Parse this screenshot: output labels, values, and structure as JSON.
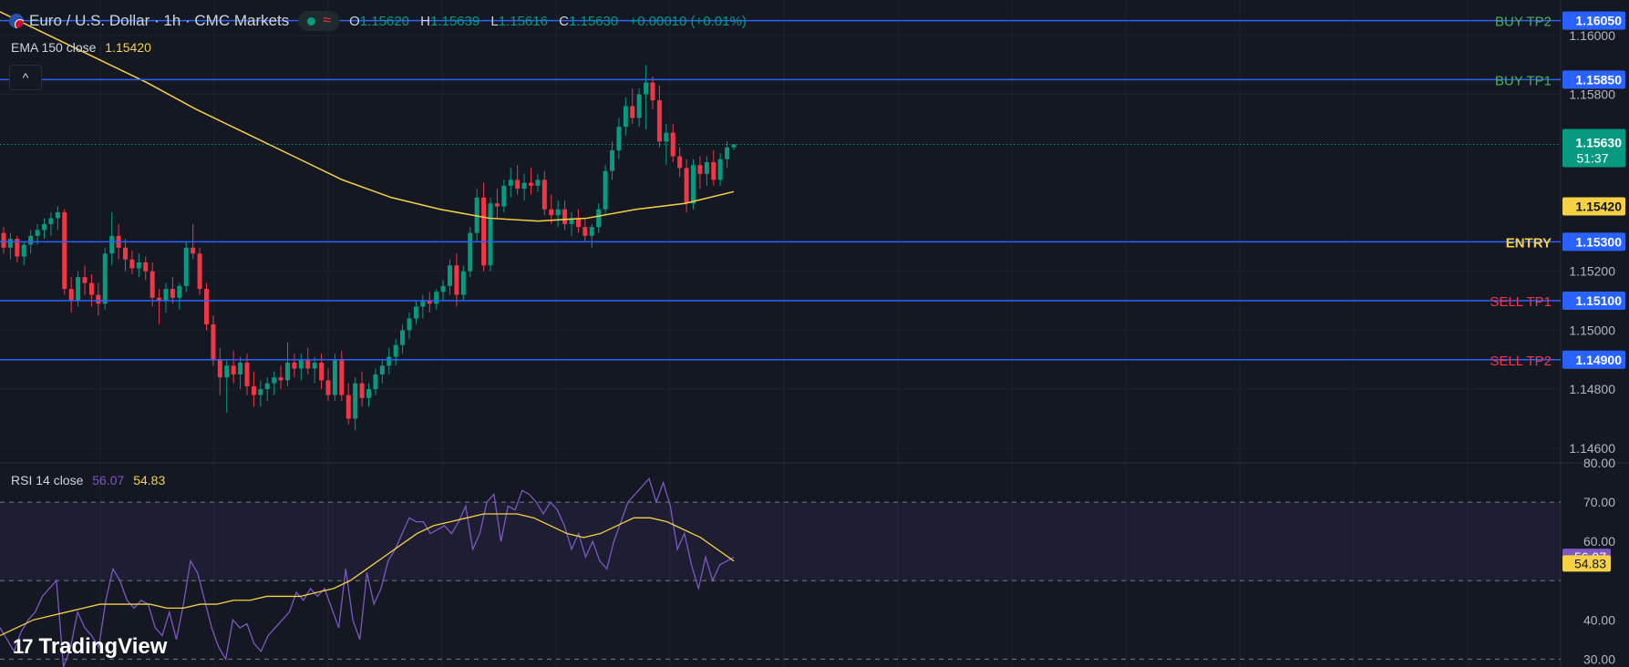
{
  "header": {
    "symbol_title": "Euro / U.S. Dollar · 1h · CMC Markets",
    "ohlc": {
      "o_label": "O",
      "o": "1.15620",
      "h_label": "H",
      "h": "1.15639",
      "l_label": "L",
      "l": "1.15616",
      "c_label": "C",
      "c": "1.15630",
      "change": "+0.00010 (+0.01%)"
    },
    "status_wave": "≈"
  },
  "ema_legend": {
    "label": "EMA 150 close",
    "value": "1.15420"
  },
  "rsi_legend": {
    "label": "RSI 14 close",
    "value1": "56.07",
    "value2": "54.83"
  },
  "collapse_icon": "^",
  "logo_text": "TradingView",
  "logo_mark": "17",
  "colors": {
    "background": "#141823",
    "up": "#089981",
    "down": "#f23645",
    "level_line": "#2962ff",
    "ema": "#f7d145",
    "rsi": "#7e57c2",
    "rsi_ma": "#f7d145",
    "buy": "#4caf50",
    "sell": "#f23645",
    "entry": "#f7d145"
  },
  "chart_data": [
    {
      "type": "candlestick",
      "title": "Euro / U.S. Dollar · 1h · CMC Markets",
      "ylim": [
        1.1455,
        1.1612
      ],
      "y_ticks": [
        "1.16000",
        "1.15800",
        "1.15200",
        "1.15000",
        "1.14800",
        "1.14600"
      ],
      "last_price": {
        "value": "1.15630",
        "countdown": "51:37"
      },
      "ema_label": "1.15420",
      "levels": [
        {
          "label": "BUY TP2",
          "value": 1.1605,
          "tag": "1.16050",
          "kind": "buy"
        },
        {
          "label": "BUY TP1",
          "value": 1.1585,
          "tag": "1.15850",
          "kind": "buy"
        },
        {
          "label": "ENTRY",
          "value": 1.153,
          "tag": "1.15300",
          "kind": "entry"
        },
        {
          "label": "SELL TP1",
          "value": 1.151,
          "tag": "1.15100",
          "kind": "sell"
        },
        {
          "label": "SELL TP2",
          "value": 1.149,
          "tag": "1.14900",
          "kind": "sell"
        }
      ],
      "candles": [
        [
          1.1533,
          1.1535,
          1.1526,
          1.1528
        ],
        [
          1.1528,
          1.1533,
          1.1524,
          1.1531
        ],
        [
          1.1531,
          1.1532,
          1.1523,
          1.1525
        ],
        [
          1.1525,
          1.153,
          1.1522,
          1.1529
        ],
        [
          1.1529,
          1.1534,
          1.1526,
          1.1532
        ],
        [
          1.1532,
          1.1536,
          1.1529,
          1.1534
        ],
        [
          1.1534,
          1.1538,
          1.1531,
          1.1536
        ],
        [
          1.1536,
          1.154,
          1.1532,
          1.1538
        ],
        [
          1.1538,
          1.1542,
          1.1534,
          1.154
        ],
        [
          1.154,
          1.1541,
          1.1512,
          1.1514
        ],
        [
          1.1514,
          1.1518,
          1.1506,
          1.151
        ],
        [
          1.151,
          1.152,
          1.1508,
          1.1518
        ],
        [
          1.1518,
          1.1522,
          1.1512,
          1.1516
        ],
        [
          1.1516,
          1.1519,
          1.1508,
          1.1512
        ],
        [
          1.1512,
          1.1516,
          1.1505,
          1.1509
        ],
        [
          1.1509,
          1.1528,
          1.1507,
          1.1526
        ],
        [
          1.1526,
          1.154,
          1.1522,
          1.1532
        ],
        [
          1.1532,
          1.1536,
          1.1524,
          1.1528
        ],
        [
          1.1528,
          1.1531,
          1.152,
          1.1524
        ],
        [
          1.1524,
          1.1527,
          1.1519,
          1.1521
        ],
        [
          1.1521,
          1.1526,
          1.1518,
          1.1523
        ],
        [
          1.1523,
          1.1525,
          1.1517,
          1.152
        ],
        [
          1.152,
          1.1523,
          1.1508,
          1.1511
        ],
        [
          1.1511,
          1.1514,
          1.1502,
          1.151
        ],
        [
          1.151,
          1.1516,
          1.1506,
          1.1514
        ],
        [
          1.1514,
          1.1518,
          1.1509,
          1.1511
        ],
        [
          1.1511,
          1.1516,
          1.1507,
          1.1515
        ],
        [
          1.1515,
          1.153,
          1.1513,
          1.1528
        ],
        [
          1.1528,
          1.1536,
          1.1524,
          1.1526
        ],
        [
          1.1526,
          1.1528,
          1.1512,
          1.1514
        ],
        [
          1.1514,
          1.1516,
          1.15,
          1.1502
        ],
        [
          1.1502,
          1.1505,
          1.1488,
          1.149
        ],
        [
          1.149,
          1.1494,
          1.1478,
          1.1484
        ],
        [
          1.1484,
          1.149,
          1.1472,
          1.1488
        ],
        [
          1.1488,
          1.1493,
          1.1482,
          1.1485
        ],
        [
          1.1485,
          1.1491,
          1.148,
          1.1489
        ],
        [
          1.1489,
          1.1492,
          1.1478,
          1.1481
        ],
        [
          1.1481,
          1.1486,
          1.1474,
          1.1478
        ],
        [
          1.1478,
          1.1483,
          1.1474,
          1.148
        ],
        [
          1.148,
          1.1484,
          1.1476,
          1.1482
        ],
        [
          1.1482,
          1.1486,
          1.1478,
          1.1484
        ],
        [
          1.1484,
          1.1488,
          1.148,
          1.1483
        ],
        [
          1.1483,
          1.1496,
          1.1481,
          1.1489
        ],
        [
          1.1489,
          1.1492,
          1.1484,
          1.1487
        ],
        [
          1.1487,
          1.1492,
          1.1483,
          1.149
        ],
        [
          1.149,
          1.1494,
          1.1485,
          1.1487
        ],
        [
          1.1487,
          1.1491,
          1.1482,
          1.1489
        ],
        [
          1.1489,
          1.1492,
          1.148,
          1.1483
        ],
        [
          1.1483,
          1.1487,
          1.1476,
          1.1478
        ],
        [
          1.1478,
          1.1492,
          1.1476,
          1.149
        ],
        [
          1.149,
          1.1493,
          1.1476,
          1.1478
        ],
        [
          1.1478,
          1.1482,
          1.1468,
          1.147
        ],
        [
          1.147,
          1.1484,
          1.1466,
          1.1482
        ],
        [
          1.1482,
          1.1486,
          1.1474,
          1.1477
        ],
        [
          1.1477,
          1.1482,
          1.1474,
          1.148
        ],
        [
          1.148,
          1.1487,
          1.1478,
          1.1485
        ],
        [
          1.1485,
          1.149,
          1.1482,
          1.1488
        ],
        [
          1.1488,
          1.1494,
          1.1485,
          1.1491
        ],
        [
          1.1491,
          1.1497,
          1.1488,
          1.1495
        ],
        [
          1.1495,
          1.1502,
          1.1492,
          1.15
        ],
        [
          1.15,
          1.1506,
          1.1497,
          1.1504
        ],
        [
          1.1504,
          1.151,
          1.1502,
          1.1508
        ],
        [
          1.1508,
          1.1512,
          1.1504,
          1.151
        ],
        [
          1.151,
          1.1513,
          1.1506,
          1.1509
        ],
        [
          1.1509,
          1.1514,
          1.1507,
          1.1513
        ],
        [
          1.1513,
          1.1517,
          1.151,
          1.1515
        ],
        [
          1.1515,
          1.1524,
          1.1512,
          1.1522
        ],
        [
          1.1522,
          1.1526,
          1.1508,
          1.1512
        ],
        [
          1.1512,
          1.1522,
          1.151,
          1.152
        ],
        [
          1.152,
          1.1535,
          1.1518,
          1.1533
        ],
        [
          1.1533,
          1.1548,
          1.153,
          1.1545
        ],
        [
          1.1545,
          1.155,
          1.152,
          1.1522
        ],
        [
          1.1522,
          1.1545,
          1.152,
          1.1543
        ],
        [
          1.1543,
          1.1548,
          1.1538,
          1.1542
        ],
        [
          1.1542,
          1.1551,
          1.154,
          1.1549
        ],
        [
          1.1549,
          1.1555,
          1.1545,
          1.1551
        ],
        [
          1.1551,
          1.1556,
          1.1546,
          1.1548
        ],
        [
          1.1548,
          1.1553,
          1.1544,
          1.155
        ],
        [
          1.155,
          1.1555,
          1.1546,
          1.1549
        ],
        [
          1.1549,
          1.1553,
          1.1547,
          1.1551
        ],
        [
          1.1551,
          1.1554,
          1.1539,
          1.1541
        ],
        [
          1.1541,
          1.1546,
          1.1536,
          1.1539
        ],
        [
          1.1539,
          1.1544,
          1.1535,
          1.1541
        ],
        [
          1.1541,
          1.1544,
          1.1534,
          1.1536
        ],
        [
          1.1536,
          1.154,
          1.1532,
          1.1538
        ],
        [
          1.1538,
          1.1541,
          1.1533,
          1.1535
        ],
        [
          1.1535,
          1.1538,
          1.153,
          1.1532
        ],
        [
          1.1532,
          1.1536,
          1.1528,
          1.1535
        ],
        [
          1.1535,
          1.1543,
          1.1533,
          1.1541
        ],
        [
          1.1541,
          1.1556,
          1.1539,
          1.1554
        ],
        [
          1.1554,
          1.1564,
          1.1551,
          1.1561
        ],
        [
          1.1561,
          1.1572,
          1.1558,
          1.1569
        ],
        [
          1.1569,
          1.1579,
          1.1566,
          1.1576
        ],
        [
          1.1576,
          1.1582,
          1.157,
          1.1572
        ],
        [
          1.1572,
          1.1582,
          1.1569,
          1.158
        ],
        [
          1.158,
          1.159,
          1.1568,
          1.1584
        ],
        [
          1.1584,
          1.1586,
          1.1575,
          1.1578
        ],
        [
          1.1578,
          1.1583,
          1.1562,
          1.1564
        ],
        [
          1.1564,
          1.157,
          1.1556,
          1.1567
        ],
        [
          1.1567,
          1.157,
          1.1557,
          1.1559
        ],
        [
          1.1559,
          1.1562,
          1.1552,
          1.1555
        ],
        [
          1.1555,
          1.1558,
          1.154,
          1.1543
        ],
        [
          1.1543,
          1.1558,
          1.1541,
          1.1556
        ],
        [
          1.1556,
          1.1559,
          1.1548,
          1.1553
        ],
        [
          1.1553,
          1.1559,
          1.1549,
          1.1557
        ],
        [
          1.1557,
          1.1561,
          1.1549,
          1.1551
        ],
        [
          1.1551,
          1.156,
          1.1549,
          1.1558
        ],
        [
          1.1558,
          1.1564,
          1.1555,
          1.1562
        ],
        [
          1.1562,
          1.1563,
          1.1561,
          1.1563
        ]
      ],
      "ema": [
        1.1608,
        1.16,
        1.1592,
        1.1584,
        1.1575,
        1.1567,
        1.1559,
        1.1551,
        1.1545,
        1.1541,
        1.1538,
        1.1537,
        1.1538,
        1.1541,
        1.1543,
        1.1547
      ]
    },
    {
      "type": "line",
      "title": "RSI 14 close",
      "ylim": [
        28,
        80
      ],
      "y_ticks": [
        "80.00",
        "70.00",
        "60.00",
        "40.00",
        "30.00"
      ],
      "band": [
        50,
        70
      ],
      "series": [
        {
          "name": "RSI 14 close",
          "last": "56.07",
          "values": [
            38,
            35,
            32,
            37,
            40,
            42,
            46,
            48,
            50,
            28,
            33,
            42,
            38,
            36,
            33,
            45,
            53,
            50,
            45,
            43,
            45,
            44,
            38,
            36,
            42,
            35,
            44,
            55,
            52,
            45,
            38,
            33,
            30,
            40,
            38,
            39,
            34,
            32,
            36,
            38,
            40,
            42,
            47,
            45,
            48,
            46,
            48,
            43,
            38,
            53,
            40,
            35,
            52,
            44,
            48,
            55,
            58,
            62,
            66,
            65,
            65,
            62,
            63,
            64,
            62,
            65,
            69,
            58,
            62,
            70,
            72,
            60,
            69,
            68,
            73,
            72,
            70,
            67,
            70,
            68,
            64,
            58,
            62,
            56,
            60,
            55,
            53,
            60,
            65,
            70,
            72,
            74,
            76,
            70,
            75,
            69,
            58,
            62,
            54,
            48,
            56,
            50,
            54,
            55,
            56
          ]
        },
        {
          "name": "RSI MA",
          "last": "54.83",
          "values": [
            36,
            38,
            40,
            41,
            42,
            43,
            44,
            44,
            44,
            44,
            43,
            43,
            44,
            44,
            45,
            45,
            46,
            46,
            46,
            47,
            48,
            50,
            53,
            56,
            59,
            62,
            64,
            65,
            66,
            67,
            67,
            67,
            66,
            64,
            62,
            61,
            62,
            64,
            66,
            66,
            65,
            63,
            61,
            58,
            55
          ]
        }
      ]
    }
  ]
}
